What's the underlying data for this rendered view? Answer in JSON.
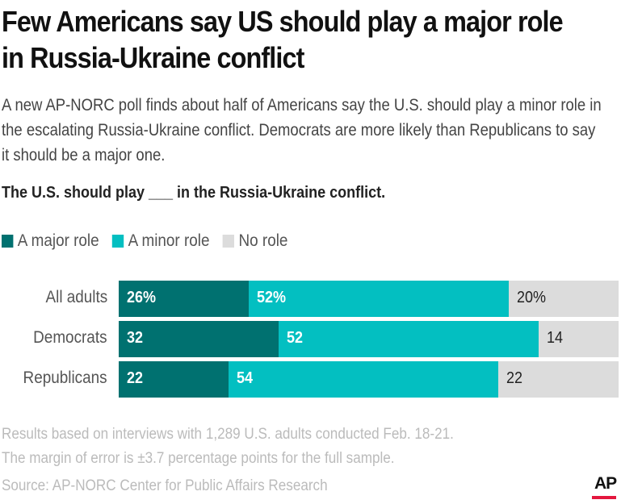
{
  "title": "Few Americans say US should play a major role in Russia-Ukraine conflict",
  "subtitle": "A new AP-NORC poll finds about half of Americans say the U.S. should play a minor role in the escalating Russia-Ukraine conflict. Democrats are more likely than Republicans to say it should be a major one.",
  "question": "The U.S. should play ___ in the Russia-Ukraine conflict.",
  "chart_data": {
    "type": "bar",
    "orientation": "horizontal-stacked",
    "categories": [
      "All adults",
      "Democrats",
      "Republicans"
    ],
    "series": [
      {
        "name": "A major role",
        "color": "#007170",
        "values": [
          26,
          32,
          22
        ],
        "labels": [
          "26%",
          "32",
          "22"
        ]
      },
      {
        "name": "A minor role",
        "color": "#03bfc1",
        "values": [
          52,
          52,
          54
        ],
        "labels": [
          "52%",
          "52",
          "54"
        ]
      },
      {
        "name": "No role",
        "color": "#dcdcdc",
        "values": [
          20,
          14,
          22
        ],
        "labels": [
          "20%",
          "14",
          "22"
        ]
      }
    ],
    "xlim": [
      0,
      100
    ],
    "legend": "top-left"
  },
  "footnote1": "Results based on interviews with 1,289 U.S. adults conducted Feb. 18-21.",
  "footnote2": "The margin of error is ±3.7 percentage points for the full sample.",
  "source": "Source: AP-NORC Center for Public Affairs Research",
  "logo": "AP"
}
